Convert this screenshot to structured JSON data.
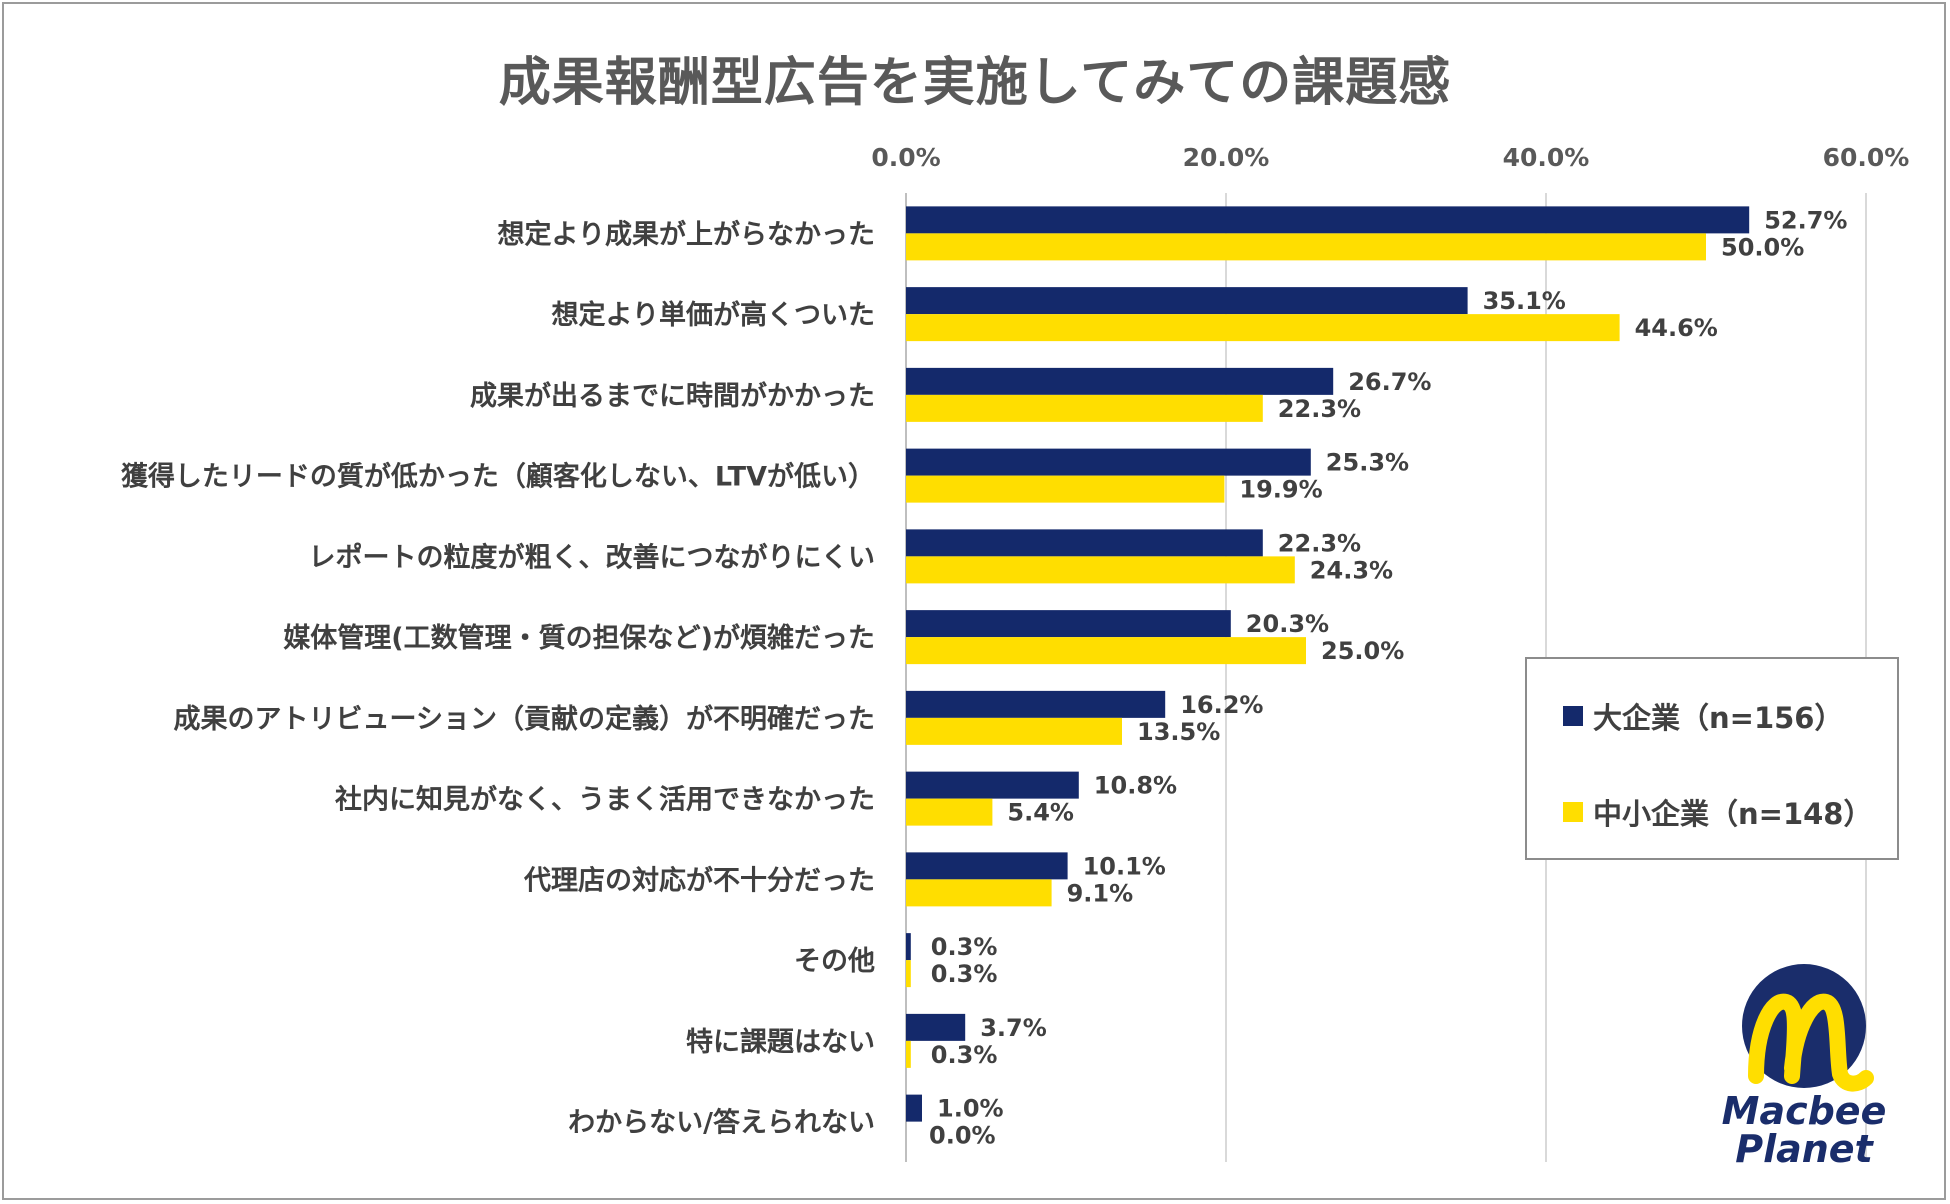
{
  "title": "成果報酬型広告を実施してみての課題感",
  "chart_data": {
    "type": "bar",
    "orientation": "horizontal",
    "title": "成果報酬型広告を実施してみての課題感",
    "categories": [
      "想定より成果が上がらなかった",
      "想定より単価が高くついた",
      "成果が出るまでに時間がかかった",
      "獲得したリードの質が低かった（顧客化しない、LTVが低い）",
      "レポートの粒度が粗く、改善につながりにくい",
      "媒体管理(工数管理・質の担保など)が煩雑だった",
      "成果のアトリビューション（貢献の定義）が不明確だった",
      "社内に知見がなく、うまく活用できなかった",
      "代理店の対応が不十分だった",
      "その他",
      "特に課題はない",
      "わからない/答えられない"
    ],
    "series": [
      {
        "name": "大企業（n=156）",
        "color": "#14296b",
        "values": [
          52.7,
          35.1,
          26.7,
          25.3,
          22.3,
          20.3,
          16.2,
          10.8,
          10.1,
          0.3,
          3.7,
          1.0
        ],
        "labels": [
          "52.7%",
          "35.1%",
          "26.7%",
          "25.3%",
          "22.3%",
          "20.3%",
          "16.2%",
          "10.8%",
          "10.1%",
          "0.3%",
          "3.7%",
          "1.0%"
        ]
      },
      {
        "name": "中小企業（n=148）",
        "color": "#ffde00",
        "values": [
          50.0,
          44.6,
          22.3,
          19.9,
          24.3,
          25.0,
          13.5,
          5.4,
          9.1,
          0.3,
          0.3,
          0.0
        ],
        "labels": [
          "50.0%",
          "44.6%",
          "22.3%",
          "19.9%",
          "24.3%",
          "25.0%",
          "13.5%",
          "5.4%",
          "9.1%",
          "0.3%",
          "0.3%",
          "0.0%"
        ]
      }
    ],
    "xlim": [
      0,
      60
    ],
    "ticks": [
      0,
      20,
      40,
      60
    ],
    "tick_labels": [
      "0.0%",
      "20.0%",
      "40.0%",
      "60.0%"
    ],
    "axis_position": "top",
    "grid": true,
    "legend_position": "right"
  },
  "legend": {
    "large": "大企業（n=156）",
    "small": "中小企業（n=148）"
  },
  "logo": {
    "line1": "Macbee",
    "line2": "Planet",
    "colors": {
      "navy": "#1a2d6b",
      "yellow": "#ffde00"
    }
  }
}
